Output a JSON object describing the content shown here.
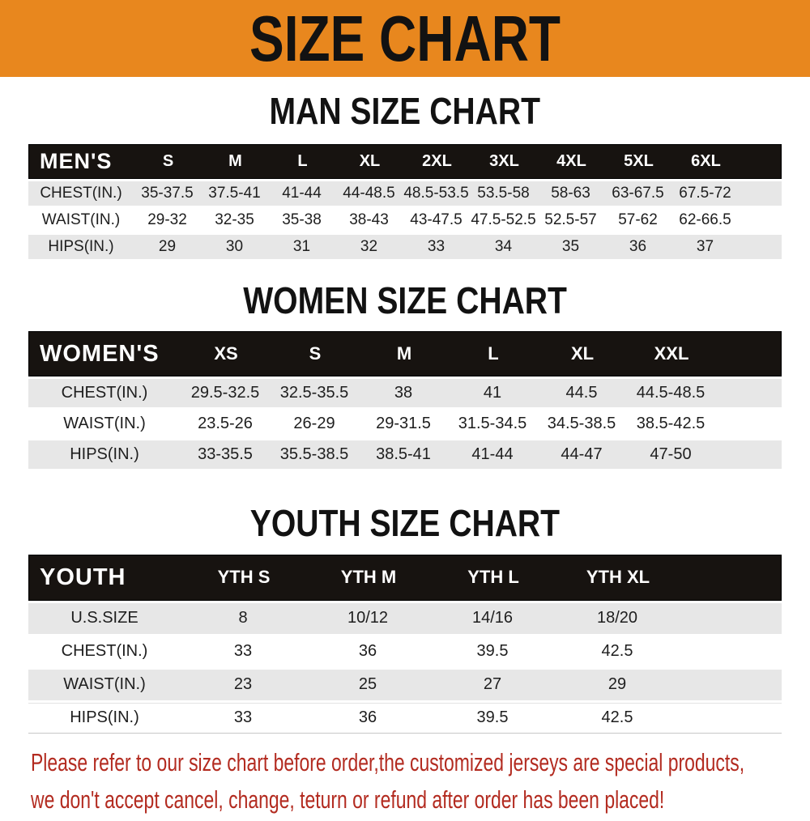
{
  "banner": {
    "title": "SIZE CHART"
  },
  "colors": {
    "banner_orange": "#E8871E",
    "header_black": "#171310",
    "row_gray": "#E7E7E7",
    "note_red": "#B32B20"
  },
  "sections": {
    "men": {
      "heading": "MAN SIZE CHART",
      "table": {
        "corner": "MEN'S",
        "sizes": [
          "S",
          "M",
          "L",
          "XL",
          "2XL",
          "3XL",
          "4XL",
          "5XL",
          "6XL"
        ],
        "rows": [
          {
            "label": "CHEST(IN.)",
            "values": [
              "35-37.5",
              "37.5-41",
              "41-44",
              "44-48.5",
              "48.5-53.5",
              "53.5-58",
              "58-63",
              "63-67.5",
              "67.5-72"
            ]
          },
          {
            "label": "WAIST(IN.)",
            "values": [
              "29-32",
              "32-35",
              "35-38",
              "38-43",
              "43-47.5",
              "47.5-52.5",
              "52.5-57",
              "57-62",
              "62-66.5"
            ]
          },
          {
            "label": "HIPS(IN.)",
            "values": [
              "29",
              "30",
              "31",
              "32",
              "33",
              "34",
              "35",
              "36",
              "37"
            ]
          }
        ]
      }
    },
    "women": {
      "heading": "WOMEN SIZE CHART",
      "table": {
        "corner": "WOMEN'S",
        "sizes": [
          "XS",
          "S",
          "M",
          "L",
          "XL",
          "XXL"
        ],
        "rows": [
          {
            "label": "CHEST(IN.)",
            "values": [
              "29.5-32.5",
              "32.5-35.5",
              "38",
              "41",
              "44.5",
              "44.5-48.5"
            ]
          },
          {
            "label": "WAIST(IN.)",
            "values": [
              "23.5-26",
              "26-29",
              "29-31.5",
              "31.5-34.5",
              "34.5-38.5",
              "38.5-42.5"
            ]
          },
          {
            "label": "HIPS(IN.)",
            "values": [
              "33-35.5",
              "35.5-38.5",
              "38.5-41",
              "41-44",
              "44-47",
              "47-50"
            ]
          }
        ]
      }
    },
    "youth": {
      "heading": "YOUTH SIZE CHART",
      "table": {
        "corner": "YOUTH",
        "sizes": [
          "YTH S",
          "YTH M",
          "YTH L",
          "YTH XL"
        ],
        "rows": [
          {
            "label": "U.S.SIZE",
            "values": [
              "8",
              "10/12",
              "14/16",
              "18/20"
            ]
          },
          {
            "label": "CHEST(IN.)",
            "values": [
              "33",
              "36",
              "39.5",
              "42.5"
            ]
          },
          {
            "label": "WAIST(IN.)",
            "values": [
              "23",
              "25",
              "27",
              "29"
            ]
          },
          {
            "label": "HIPS(IN.)",
            "values": [
              "33",
              "36",
              "39.5",
              "42.5"
            ]
          }
        ]
      }
    }
  },
  "note": {
    "line1": "Please refer to our size chart before order,the customized jerseys are special products,",
    "line2": "we don't accept cancel, change, teturn or refund after order has been placed!"
  }
}
